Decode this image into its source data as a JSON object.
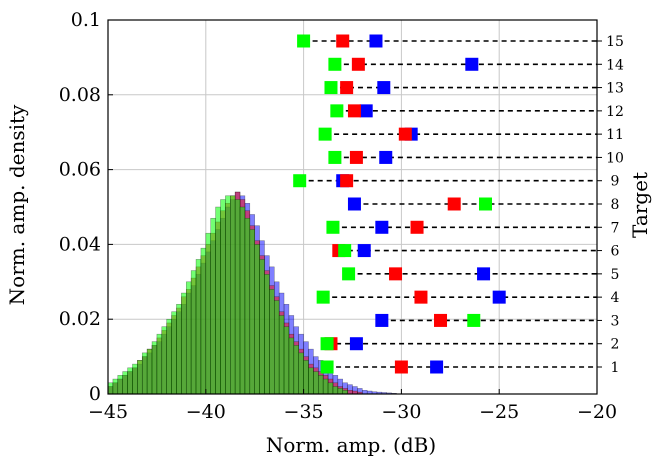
{
  "chart_data": {
    "type": "bar",
    "xlabel": "Norm. amp. (dB)",
    "ylabel": "Norm. amp. density",
    "y2label": "Target",
    "xlim": [
      -45,
      -20
    ],
    "ylim": [
      0,
      0.1
    ],
    "xticks": [
      -45,
      -40,
      -35,
      -30,
      -25,
      -20
    ],
    "xtick_labels": [
      "−45",
      "−40",
      "−35",
      "−30",
      "−25",
      "−20"
    ],
    "yticks": [
      0,
      0.02,
      0.04,
      0.06,
      0.08,
      0.1
    ],
    "ytick_labels": [
      "0",
      "0.02",
      "0.04",
      "0.06",
      "0.08",
      "0.1"
    ],
    "grid": true,
    "histogram": {
      "bin_width": 0.25,
      "series": [
        {
          "color": "#0000ff",
          "opacity": 0.5,
          "bins": [
            [
              -45,
              0.002
            ],
            [
              -44.75,
              0.003
            ],
            [
              -44.5,
              0.004
            ],
            [
              -44.25,
              0.005
            ],
            [
              -44,
              0.006
            ],
            [
              -43.75,
              0.007
            ],
            [
              -43.5,
              0.008
            ],
            [
              -43.25,
              0.01
            ],
            [
              -43,
              0.011
            ],
            [
              -42.75,
              0.013
            ],
            [
              -42.5,
              0.014
            ],
            [
              -42.25,
              0.016
            ],
            [
              -42,
              0.018
            ],
            [
              -41.75,
              0.02
            ],
            [
              -41.5,
              0.022
            ],
            [
              -41.25,
              0.024
            ],
            [
              -41,
              0.027
            ],
            [
              -40.75,
              0.029
            ],
            [
              -40.5,
              0.032
            ],
            [
              -40.25,
              0.035
            ],
            [
              -40,
              0.038
            ],
            [
              -39.75,
              0.041
            ],
            [
              -39.5,
              0.044
            ],
            [
              -39.25,
              0.047
            ],
            [
              -39,
              0.05
            ],
            [
              -38.75,
              0.052
            ],
            [
              -38.5,
              0.054
            ],
            [
              -38.25,
              0.053
            ],
            [
              -38,
              0.051
            ],
            [
              -37.75,
              0.048
            ],
            [
              -37.5,
              0.045
            ],
            [
              -37.25,
              0.041
            ],
            [
              -37,
              0.037
            ],
            [
              -36.75,
              0.034
            ],
            [
              -36.5,
              0.03
            ],
            [
              -36.25,
              0.027
            ],
            [
              -36,
              0.024
            ],
            [
              -35.75,
              0.021
            ],
            [
              -35.5,
              0.018
            ],
            [
              -35.25,
              0.016
            ],
            [
              -35,
              0.014
            ],
            [
              -34.75,
              0.012
            ],
            [
              -34.5,
              0.01
            ],
            [
              -34.25,
              0.009
            ],
            [
              -34,
              0.007
            ],
            [
              -33.75,
              0.006
            ],
            [
              -33.5,
              0.005
            ],
            [
              -33.25,
              0.004
            ],
            [
              -33,
              0.003
            ],
            [
              -32.75,
              0.0025
            ],
            [
              -32.5,
              0.002
            ],
            [
              -32.25,
              0.0015
            ],
            [
              -32,
              0.001
            ],
            [
              -31.75,
              0.0008
            ],
            [
              -31.5,
              0.0006
            ],
            [
              -31.25,
              0.0005
            ],
            [
              -31,
              0.0004
            ],
            [
              -30.75,
              0.0003
            ],
            [
              -30.5,
              0.0002
            ]
          ]
        },
        {
          "color": "#ff0000",
          "opacity": 0.5,
          "bins": [
            [
              -45,
              0.002
            ],
            [
              -44.75,
              0.003
            ],
            [
              -44.5,
              0.004
            ],
            [
              -44.25,
              0.005
            ],
            [
              -44,
              0.006
            ],
            [
              -43.75,
              0.007
            ],
            [
              -43.5,
              0.009
            ],
            [
              -43.25,
              0.01
            ],
            [
              -43,
              0.012
            ],
            [
              -42.75,
              0.013
            ],
            [
              -42.5,
              0.015
            ],
            [
              -42.25,
              0.017
            ],
            [
              -42,
              0.019
            ],
            [
              -41.75,
              0.021
            ],
            [
              -41.5,
              0.023
            ],
            [
              -41.25,
              0.026
            ],
            [
              -41,
              0.028
            ],
            [
              -40.75,
              0.031
            ],
            [
              -40.5,
              0.034
            ],
            [
              -40.25,
              0.037
            ],
            [
              -40,
              0.04
            ],
            [
              -39.75,
              0.043
            ],
            [
              -39.5,
              0.046
            ],
            [
              -39.25,
              0.049
            ],
            [
              -39,
              0.051
            ],
            [
              -38.75,
              0.053
            ],
            [
              -38.5,
              0.054
            ],
            [
              -38.25,
              0.052
            ],
            [
              -38,
              0.049
            ],
            [
              -37.75,
              0.045
            ],
            [
              -37.5,
              0.041
            ],
            [
              -37.25,
              0.037
            ],
            [
              -37,
              0.033
            ],
            [
              -36.75,
              0.029
            ],
            [
              -36.5,
              0.026
            ],
            [
              -36.25,
              0.022
            ],
            [
              -36,
              0.019
            ],
            [
              -35.75,
              0.016
            ],
            [
              -35.5,
              0.014
            ],
            [
              -35.25,
              0.012
            ],
            [
              -35,
              0.01
            ],
            [
              -34.75,
              0.008
            ],
            [
              -34.5,
              0.007
            ],
            [
              -34.25,
              0.006
            ],
            [
              -34,
              0.005
            ],
            [
              -33.75,
              0.004
            ],
            [
              -33.5,
              0.003
            ],
            [
              -33.25,
              0.002
            ],
            [
              -33,
              0.0015
            ],
            [
              -32.75,
              0.001
            ],
            [
              -32.5,
              0.0008
            ],
            [
              -32.25,
              0.0005
            ]
          ]
        },
        {
          "color": "#00ff00",
          "opacity": 0.55,
          "bins": [
            [
              -45,
              0.003
            ],
            [
              -44.75,
              0.004
            ],
            [
              -44.5,
              0.005
            ],
            [
              -44.25,
              0.006
            ],
            [
              -44,
              0.007
            ],
            [
              -43.75,
              0.008
            ],
            [
              -43.5,
              0.009
            ],
            [
              -43.25,
              0.011
            ],
            [
              -43,
              0.012
            ],
            [
              -42.75,
              0.014
            ],
            [
              -42.5,
              0.016
            ],
            [
              -42.25,
              0.018
            ],
            [
              -42,
              0.02
            ],
            [
              -41.75,
              0.022
            ],
            [
              -41.5,
              0.024
            ],
            [
              -41.25,
              0.027
            ],
            [
              -41,
              0.03
            ],
            [
              -40.75,
              0.033
            ],
            [
              -40.5,
              0.036
            ],
            [
              -40.25,
              0.039
            ],
            [
              -40,
              0.043
            ],
            [
              -39.75,
              0.047
            ],
            [
              -39.5,
              0.05
            ],
            [
              -39.25,
              0.052
            ],
            [
              -39,
              0.053
            ],
            [
              -38.75,
              0.053
            ],
            [
              -38.5,
              0.052
            ],
            [
              -38.25,
              0.05
            ],
            [
              -38,
              0.047
            ],
            [
              -37.75,
              0.044
            ],
            [
              -37.5,
              0.04
            ],
            [
              -37.25,
              0.036
            ],
            [
              -37,
              0.032
            ],
            [
              -36.75,
              0.028
            ],
            [
              -36.5,
              0.025
            ],
            [
              -36.25,
              0.021
            ],
            [
              -36,
              0.018
            ],
            [
              -35.75,
              0.015
            ],
            [
              -35.5,
              0.013
            ],
            [
              -35.25,
              0.011
            ],
            [
              -35,
              0.009
            ],
            [
              -34.75,
              0.007
            ],
            [
              -34.5,
              0.006
            ],
            [
              -34.25,
              0.005
            ],
            [
              -34,
              0.004
            ],
            [
              -33.75,
              0.003
            ],
            [
              -33.5,
              0.002
            ],
            [
              -33.25,
              0.0015
            ],
            [
              -33,
              0.001
            ]
          ]
        }
      ]
    },
    "targets": {
      "y2_labels": [
        "1",
        "2",
        "3",
        "4",
        "5",
        "6",
        "7",
        "8",
        "9",
        "10",
        "11",
        "12",
        "13",
        "14",
        "15"
      ],
      "blue": [
        -28.2,
        -32.3,
        -31.0,
        -25.0,
        -25.8,
        -31.9,
        -31.0,
        -32.4,
        -33.0,
        -30.8,
        -29.5,
        -31.8,
        -30.9,
        -26.4,
        -31.3
      ],
      "red": [
        -30.0,
        -33.6,
        -28.0,
        -29.0,
        -30.3,
        -33.2,
        -29.2,
        -27.3,
        -32.8,
        -32.3,
        -29.8,
        -32.4,
        -32.8,
        -32.2,
        -33.0
      ],
      "green": [
        -33.8,
        -33.8,
        -26.3,
        -34.0,
        -32.7,
        -32.9,
        -33.5,
        -25.7,
        -35.2,
        -33.4,
        -33.9,
        -33.3,
        -33.6,
        -33.4,
        -35.0
      ],
      "colors": {
        "blue": "#0000ff",
        "red": "#ff0000",
        "green": "#00ff00"
      }
    }
  }
}
